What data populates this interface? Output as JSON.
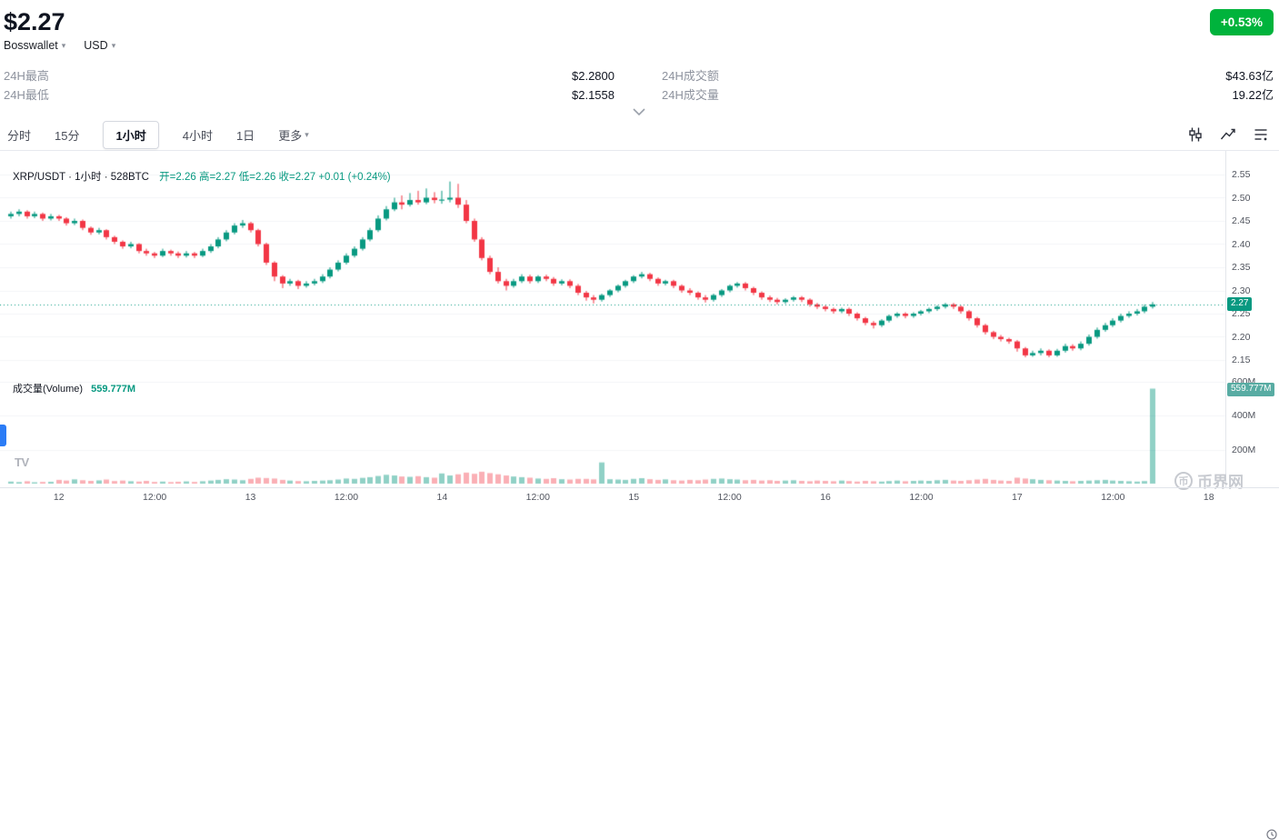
{
  "header": {
    "price": "$2.27",
    "change_badge": "+0.53%",
    "wallet_selector": "Bosswallet",
    "currency_selector": "USD",
    "stats": {
      "high_label": "24H最高",
      "high_value": "$2.2800",
      "low_label": "24H最低",
      "low_value": "$2.1558",
      "turnover_label": "24H成交额",
      "turnover_value": "$43.63亿",
      "volume_label": "24H成交量",
      "volume_value": "19.22亿"
    }
  },
  "toolbar": {
    "tabs": [
      {
        "label": "分时"
      },
      {
        "label": "15分"
      },
      {
        "label": "1小时",
        "active": true
      },
      {
        "label": "4小时"
      },
      {
        "label": "1日"
      },
      {
        "label": "更多",
        "caret": true
      }
    ]
  },
  "chart": {
    "legend": {
      "symbol_text": "XRP/USDT · 1小时 · 528BTC",
      "ohlc_text": "开=2.26 高=2.27 低=2.26 收=2.27 +0.01 (+0.24%)"
    },
    "volume_legend": {
      "label": "成交量(Volume)",
      "value": "559.777M"
    },
    "price_badge": "2.27",
    "volume_badge": "559.777M",
    "tv_logo": "TV",
    "watermark_icon": "币",
    "watermark": "币界网"
  },
  "colors": {
    "up": "#089981",
    "down": "#f23645",
    "vol_up": "rgba(8,153,129,0.45)",
    "vol_down": "rgba(242,54,69,0.40)",
    "badge_green": "#00b33c",
    "vol_badge": "#58aca3"
  },
  "chart_data": {
    "type": "candlestick+volume",
    "pair": "XRP/USDT",
    "interval": "1小时",
    "last_price": 2.27,
    "price_axis_ticks": [
      "2.55",
      "2.50",
      "2.45",
      "2.40",
      "2.35",
      "2.30",
      "2.25",
      "2.20",
      "2.15"
    ],
    "volume_axis_ticks": [
      "600M",
      "400M",
      "200M"
    ],
    "time_axis": [
      [
        "12",
        6
      ],
      [
        "12:00",
        18
      ],
      [
        "13",
        30
      ],
      [
        "12:00",
        42
      ],
      [
        "14",
        54
      ],
      [
        "12:00",
        66
      ],
      [
        "15",
        78
      ],
      [
        "12:00",
        90
      ],
      [
        "16",
        102
      ],
      [
        "12:00",
        114
      ],
      [
        "17",
        126
      ],
      [
        "12:00",
        138
      ],
      [
        "18",
        150
      ]
    ],
    "candles": [
      [
        2.46,
        2.47,
        2.455,
        2.465
      ],
      [
        2.465,
        2.475,
        2.46,
        2.47
      ],
      [
        2.47,
        2.473,
        2.455,
        2.46
      ],
      [
        2.46,
        2.47,
        2.456,
        2.465
      ],
      [
        2.465,
        2.468,
        2.45,
        2.455
      ],
      [
        2.455,
        2.465,
        2.451,
        2.46
      ],
      [
        2.46,
        2.463,
        2.45,
        2.455
      ],
      [
        2.455,
        2.458,
        2.44,
        2.445
      ],
      [
        2.445,
        2.455,
        2.441,
        2.45
      ],
      [
        2.45,
        2.453,
        2.43,
        2.435
      ],
      [
        2.435,
        2.438,
        2.42,
        2.425
      ],
      [
        2.425,
        2.435,
        2.421,
        2.43
      ],
      [
        2.43,
        2.432,
        2.41,
        2.415
      ],
      [
        2.415,
        2.418,
        2.4,
        2.405
      ],
      [
        2.405,
        2.408,
        2.39,
        2.395
      ],
      [
        2.395,
        2.405,
        2.391,
        2.4
      ],
      [
        2.4,
        2.402,
        2.38,
        2.385
      ],
      [
        2.385,
        2.39,
        2.375,
        2.38
      ],
      [
        2.38,
        2.383,
        2.37,
        2.375
      ],
      [
        2.375,
        2.39,
        2.372,
        2.385
      ],
      [
        2.385,
        2.388,
        2.375,
        2.38
      ],
      [
        2.38,
        2.384,
        2.37,
        2.375
      ],
      [
        2.375,
        2.385,
        2.371,
        2.38
      ],
      [
        2.38,
        2.383,
        2.37,
        2.375
      ],
      [
        2.375,
        2.39,
        2.372,
        2.385
      ],
      [
        2.385,
        2.4,
        2.381,
        2.395
      ],
      [
        2.395,
        2.415,
        2.391,
        2.41
      ],
      [
        2.41,
        2.43,
        2.406,
        2.425
      ],
      [
        2.425,
        2.445,
        2.421,
        2.44
      ],
      [
        2.44,
        2.452,
        2.435,
        2.445
      ],
      [
        2.445,
        2.448,
        2.425,
        2.43
      ],
      [
        2.43,
        2.433,
        2.395,
        2.4
      ],
      [
        2.4,
        2.403,
        2.355,
        2.36
      ],
      [
        2.36,
        2.363,
        2.32,
        2.33
      ],
      [
        2.33,
        2.333,
        2.305,
        2.315
      ],
      [
        2.315,
        2.325,
        2.31,
        2.32
      ],
      [
        2.32,
        2.323,
        2.303,
        2.31
      ],
      [
        2.31,
        2.32,
        2.306,
        2.315
      ],
      [
        2.315,
        2.325,
        2.311,
        2.32
      ],
      [
        2.32,
        2.335,
        2.316,
        2.33
      ],
      [
        2.33,
        2.35,
        2.326,
        2.345
      ],
      [
        2.345,
        2.365,
        2.341,
        2.36
      ],
      [
        2.36,
        2.38,
        2.356,
        2.375
      ],
      [
        2.375,
        2.395,
        2.371,
        2.39
      ],
      [
        2.39,
        2.415,
        2.386,
        2.41
      ],
      [
        2.41,
        2.435,
        2.406,
        2.43
      ],
      [
        2.43,
        2.462,
        2.426,
        2.455
      ],
      [
        2.455,
        2.482,
        2.451,
        2.475
      ],
      [
        2.475,
        2.5,
        2.471,
        2.49
      ],
      [
        2.49,
        2.505,
        2.475,
        2.485
      ],
      [
        2.485,
        2.51,
        2.481,
        2.495
      ],
      [
        2.495,
        2.515,
        2.485,
        2.49
      ],
      [
        2.49,
        2.52,
        2.486,
        2.5
      ],
      [
        2.5,
        2.512,
        2.488,
        2.495
      ],
      [
        2.495,
        2.515,
        2.487,
        2.496
      ],
      [
        2.496,
        2.535,
        2.49,
        2.5
      ],
      [
        2.5,
        2.53,
        2.478,
        2.485
      ],
      [
        2.485,
        2.495,
        2.445,
        2.45
      ],
      [
        2.45,
        2.455,
        2.405,
        2.41
      ],
      [
        2.41,
        2.415,
        2.365,
        2.37
      ],
      [
        2.37,
        2.375,
        2.335,
        2.34
      ],
      [
        2.34,
        2.35,
        2.315,
        2.32
      ],
      [
        2.32,
        2.325,
        2.3,
        2.31
      ],
      [
        2.31,
        2.325,
        2.306,
        2.32
      ],
      [
        2.32,
        2.335,
        2.316,
        2.33
      ],
      [
        2.33,
        2.334,
        2.315,
        2.32
      ],
      [
        2.32,
        2.333,
        2.316,
        2.33
      ],
      [
        2.33,
        2.334,
        2.32,
        2.325
      ],
      [
        2.325,
        2.329,
        2.31,
        2.315
      ],
      [
        2.315,
        2.324,
        2.311,
        2.32
      ],
      [
        2.32,
        2.324,
        2.305,
        2.31
      ],
      [
        2.31,
        2.314,
        2.29,
        2.295
      ],
      [
        2.295,
        2.299,
        2.278,
        2.285
      ],
      [
        2.285,
        2.29,
        2.272,
        2.28
      ],
      [
        2.28,
        2.293,
        2.276,
        2.29
      ],
      [
        2.29,
        2.303,
        2.286,
        2.3
      ],
      [
        2.3,
        2.313,
        2.296,
        2.31
      ],
      [
        2.31,
        2.323,
        2.306,
        2.32
      ],
      [
        2.32,
        2.333,
        2.316,
        2.33
      ],
      [
        2.33,
        2.34,
        2.326,
        2.335
      ],
      [
        2.335,
        2.338,
        2.32,
        2.325
      ],
      [
        2.325,
        2.328,
        2.31,
        2.315
      ],
      [
        2.315,
        2.323,
        2.311,
        2.32
      ],
      [
        2.32,
        2.323,
        2.305,
        2.31
      ],
      [
        2.31,
        2.313,
        2.295,
        2.3
      ],
      [
        2.3,
        2.305,
        2.29,
        2.295
      ],
      [
        2.295,
        2.298,
        2.28,
        2.285
      ],
      [
        2.285,
        2.29,
        2.274,
        2.28
      ],
      [
        2.28,
        2.293,
        2.276,
        2.29
      ],
      [
        2.29,
        2.303,
        2.286,
        2.3
      ],
      [
        2.3,
        2.313,
        2.296,
        2.31
      ],
      [
        2.31,
        2.318,
        2.306,
        2.315
      ],
      [
        2.315,
        2.318,
        2.3,
        2.305
      ],
      [
        2.305,
        2.308,
        2.29,
        2.295
      ],
      [
        2.295,
        2.298,
        2.28,
        2.285
      ],
      [
        2.285,
        2.289,
        2.275,
        2.28
      ],
      [
        2.28,
        2.284,
        2.27,
        2.275
      ],
      [
        2.275,
        2.283,
        2.271,
        2.28
      ],
      [
        2.28,
        2.288,
        2.276,
        2.285
      ],
      [
        2.285,
        2.288,
        2.275,
        2.28
      ],
      [
        2.28,
        2.283,
        2.265,
        2.27
      ],
      [
        2.27,
        2.273,
        2.26,
        2.265
      ],
      [
        2.265,
        2.268,
        2.255,
        2.26
      ],
      [
        2.26,
        2.263,
        2.25,
        2.255
      ],
      [
        2.255,
        2.263,
        2.251,
        2.26
      ],
      [
        2.26,
        2.263,
        2.245,
        2.25
      ],
      [
        2.25,
        2.253,
        2.235,
        2.24
      ],
      [
        2.24,
        2.243,
        2.225,
        2.23
      ],
      [
        2.23,
        2.234,
        2.218,
        2.225
      ],
      [
        2.225,
        2.238,
        2.221,
        2.235
      ],
      [
        2.235,
        2.248,
        2.231,
        2.245
      ],
      [
        2.245,
        2.253,
        2.241,
        2.25
      ],
      [
        2.25,
        2.253,
        2.24,
        2.245
      ],
      [
        2.245,
        2.253,
        2.241,
        2.25
      ],
      [
        2.25,
        2.258,
        2.246,
        2.255
      ],
      [
        2.255,
        2.263,
        2.251,
        2.26
      ],
      [
        2.26,
        2.268,
        2.256,
        2.265
      ],
      [
        2.265,
        2.273,
        2.261,
        2.27
      ],
      [
        2.27,
        2.273,
        2.26,
        2.265
      ],
      [
        2.265,
        2.268,
        2.25,
        2.255
      ],
      [
        2.255,
        2.258,
        2.235,
        2.24
      ],
      [
        2.24,
        2.243,
        2.22,
        2.225
      ],
      [
        2.225,
        2.228,
        2.205,
        2.21
      ],
      [
        2.21,
        2.213,
        2.195,
        2.2
      ],
      [
        2.2,
        2.204,
        2.19,
        2.195
      ],
      [
        2.195,
        2.198,
        2.185,
        2.19
      ],
      [
        2.19,
        2.193,
        2.168,
        2.175
      ],
      [
        2.175,
        2.178,
        2.156,
        2.16
      ],
      [
        2.16,
        2.17,
        2.157,
        2.165
      ],
      [
        2.165,
        2.175,
        2.16,
        2.17
      ],
      [
        2.17,
        2.173,
        2.156,
        2.16
      ],
      [
        2.16,
        2.174,
        2.157,
        2.17
      ],
      [
        2.17,
        2.185,
        2.166,
        2.18
      ],
      [
        2.18,
        2.184,
        2.17,
        2.175
      ],
      [
        2.175,
        2.19,
        2.171,
        2.185
      ],
      [
        2.185,
        2.205,
        2.181,
        2.2
      ],
      [
        2.2,
        2.22,
        2.196,
        2.215
      ],
      [
        2.215,
        2.23,
        2.211,
        2.225
      ],
      [
        2.225,
        2.24,
        2.221,
        2.235
      ],
      [
        2.235,
        2.25,
        2.231,
        2.245
      ],
      [
        2.245,
        2.255,
        2.241,
        2.25
      ],
      [
        2.25,
        2.26,
        2.246,
        2.255
      ],
      [
        2.255,
        2.27,
        2.251,
        2.265
      ],
      [
        2.265,
        2.275,
        2.261,
        2.27
      ]
    ],
    "volumes_m": [
      12,
      9,
      14,
      8,
      10,
      11,
      22,
      18,
      25,
      20,
      16,
      19,
      24,
      15,
      18,
      14,
      12,
      16,
      10,
      12,
      9,
      11,
      13,
      10,
      14,
      18,
      22,
      26,
      24,
      20,
      28,
      35,
      33,
      30,
      22,
      18,
      15,
      14,
      16,
      18,
      20,
      24,
      30,
      28,
      34,
      38,
      45,
      52,
      48,
      42,
      40,
      44,
      38,
      35,
      60,
      48,
      55,
      65,
      58,
      70,
      62,
      55,
      48,
      42,
      38,
      35,
      30,
      28,
      32,
      26,
      24,
      28,
      28,
      25,
      125,
      26,
      24,
      22,
      28,
      32,
      26,
      22,
      25,
      20,
      18,
      22,
      20,
      24,
      28,
      30,
      26,
      24,
      20,
      22,
      18,
      20,
      16,
      18,
      20,
      16,
      14,
      18,
      16,
      14,
      18,
      15,
      12,
      16,
      14,
      12,
      15,
      18,
      14,
      16,
      18,
      16,
      20,
      22,
      18,
      16,
      20,
      24,
      28,
      22,
      18,
      16,
      35,
      30,
      26,
      22,
      20,
      18,
      16,
      14,
      16,
      18,
      20,
      22,
      18,
      16,
      14,
      12,
      15,
      559.777
    ]
  }
}
